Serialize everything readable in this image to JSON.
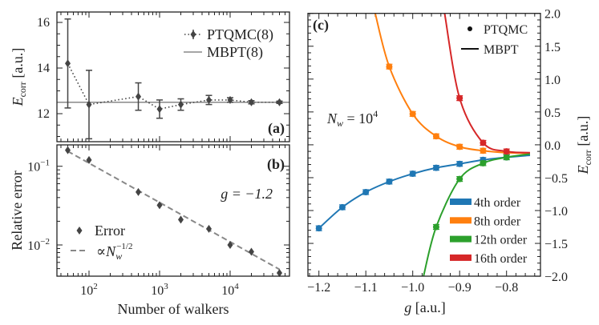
{
  "chart_data": [
    {
      "panel": "(a)",
      "type": "line",
      "xscale": "log",
      "xlim": [
        35,
        69000
      ],
      "ylim": [
        10.77,
        16.46
      ],
      "ylabel": {
        "main": "E",
        "sub": "corr",
        "unit": " [a.u.]"
      },
      "yticks": [
        "12",
        "14",
        "16"
      ],
      "legend_placement": "top-right",
      "series": [
        {
          "name": "PTQMC(8)",
          "style": "dotted-with-errorbars",
          "color": "#444444",
          "x": [
            50,
            100,
            500,
            1000,
            2000,
            5000,
            10000,
            20000,
            50000
          ],
          "y": [
            14.2,
            12.4,
            12.75,
            12.2,
            12.4,
            12.6,
            12.6,
            12.5,
            12.5
          ],
          "yerr": [
            1.95,
            1.5,
            0.6,
            0.4,
            0.25,
            0.2,
            0.1,
            0.07,
            0.05
          ]
        },
        {
          "name": "MBPT(8)",
          "style": "solid",
          "color": "#888888",
          "y": 12.5
        }
      ]
    },
    {
      "panel": "(b)",
      "type": "scatter",
      "xscale": "log",
      "yscale": "log",
      "xlim": [
        35,
        69000
      ],
      "ylim": [
        0.004,
        0.187
      ],
      "xlabel": "Number of walkers",
      "ylabel": "Relative error",
      "xticks": [
        {
          "base": "10",
          "exp": "2"
        },
        {
          "base": "10",
          "exp": "3"
        },
        {
          "base": "10",
          "exp": "4"
        }
      ],
      "yticks": [
        {
          "base": "10",
          "exp": "−1"
        },
        {
          "base": "10",
          "exp": "−2"
        }
      ],
      "annotation": "g = −1.2",
      "legend_placement": "bottom-left",
      "series": [
        {
          "name": "Error",
          "color": "#444444",
          "x": [
            50,
            100,
            500,
            1000,
            2000,
            5000,
            10000,
            20000,
            50000
          ],
          "y": [
            0.16,
            0.12,
            0.047,
            0.032,
            0.021,
            0.016,
            0.01,
            0.0082,
            0.0044
          ]
        },
        {
          "name": {
            "pre": "∝N",
            "sub": "w",
            "sup": "−1/2"
          },
          "style": "dashed",
          "color": "#888888",
          "x": [
            50,
            50000
          ],
          "y": [
            0.155,
            0.0049
          ]
        }
      ]
    },
    {
      "panel": "(c)",
      "type": "line",
      "xlim": [
        -1.223,
        -0.728
      ],
      "ylim": [
        -2.0,
        2.0
      ],
      "xlabel": {
        "main": "g",
        "unit": " [a.u.]"
      },
      "ylabel": {
        "main": "E",
        "sub": "corr",
        "unit": " [a.u.]"
      },
      "xticks": [
        "−1.2",
        "−1.1",
        "−1.0",
        "−0.9",
        "−0.8"
      ],
      "yticks": [
        "2.0",
        "1.5",
        "1.0",
        "0.5",
        "0.0",
        "−0.5",
        "−1.0",
        "−1.5",
        "−2.0"
      ],
      "yaxis_side": "right",
      "annotation": {
        "pre": "N",
        "sub": "w",
        "mid": " = 10",
        "sup": "4"
      },
      "style_legend": [
        "PTQMC",
        "MBPT"
      ],
      "series": [
        {
          "name": "4th order",
          "color": "#1f77b4",
          "ptqmc": {
            "x": [
              -1.2,
              -1.15,
              -1.1,
              -1.05,
              -1.0,
              -0.95,
              -0.9,
              -0.85,
              -0.8
            ],
            "y": [
              -1.27,
              -0.95,
              -0.72,
              -0.56,
              -0.44,
              -0.35,
              -0.29,
              -0.23,
              -0.19
            ]
          },
          "mbpt": {
            "x": [
              -1.2,
              -1.15,
              -1.1,
              -1.05,
              -1.0,
              -0.95,
              -0.9,
              -0.85,
              -0.8,
              -0.75
            ],
            "y": [
              -1.27,
              -0.95,
              -0.72,
              -0.56,
              -0.44,
              -0.35,
              -0.29,
              -0.23,
              -0.19,
              -0.16
            ]
          }
        },
        {
          "name": "8th order",
          "color": "#ff7f0e",
          "ptqmc": {
            "x": [
              -1.05,
              -1.0,
              -0.95,
              -0.9,
              -0.85
            ],
            "y": [
              1.19,
              0.47,
              0.13,
              -0.03,
              -0.09
            ]
          },
          "mbpt": {
            "x": [
              -1.08,
              -1.05,
              -1.0,
              -0.95,
              -0.9,
              -0.85,
              -0.8,
              -0.75
            ],
            "y": [
              2.0,
              1.19,
              0.47,
              0.13,
              -0.03,
              -0.09,
              -0.12,
              -0.13
            ]
          }
        },
        {
          "name": "12th order",
          "color": "#2ca02c",
          "ptqmc": {
            "x": [
              -0.95,
              -0.9,
              -0.85,
              -0.8
            ],
            "y": [
              -1.25,
              -0.52,
              -0.28,
              -0.19
            ]
          },
          "mbpt": {
            "x": [
              -0.977,
              -0.95,
              -0.9,
              -0.85,
              -0.8,
              -0.75
            ],
            "y": [
              -2.0,
              -1.25,
              -0.52,
              -0.28,
              -0.19,
              -0.14
            ]
          }
        },
        {
          "name": "16th order",
          "color": "#d62728",
          "ptqmc": {
            "x": [
              -0.9,
              -0.85,
              -0.8
            ],
            "y": [
              0.71,
              0.03,
              -0.1
            ]
          },
          "mbpt": {
            "x": [
              -0.932,
              -0.9,
              -0.85,
              -0.8,
              -0.75
            ],
            "y": [
              2.0,
              0.71,
              0.03,
              -0.1,
              -0.12
            ]
          }
        }
      ]
    }
  ]
}
